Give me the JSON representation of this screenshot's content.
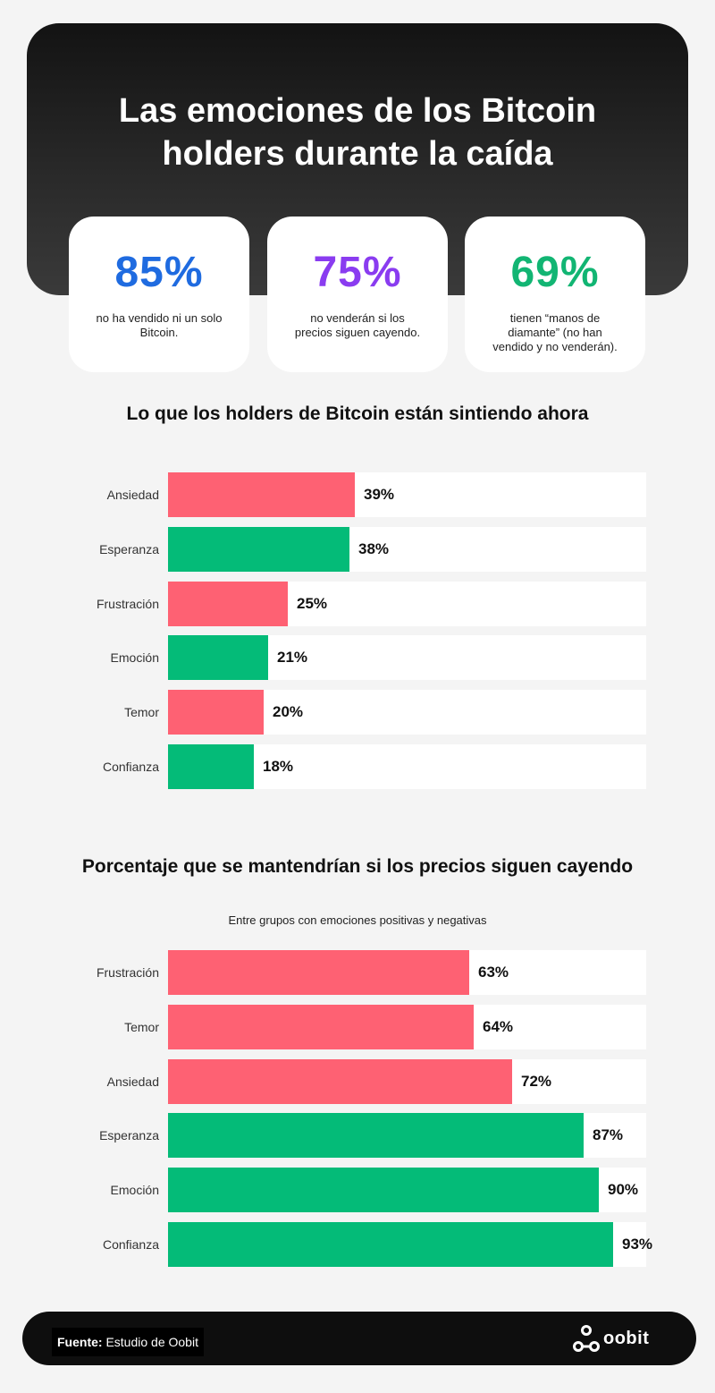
{
  "hero": {
    "title": "Las emociones de los Bitcoin\nholders durante la caída",
    "stats": [
      {
        "value": "85%",
        "desc": "no ha vendido ni un solo Bitcoin.",
        "color": "#1f6be0"
      },
      {
        "value": "75%",
        "desc": "no venderán si los precios siguen cayendo.",
        "color": "#8a3cf0"
      },
      {
        "value": "69%",
        "desc": "tienen “manos de diamante” (no han vendido y no venderán).",
        "color": "#12b573"
      }
    ]
  },
  "colors": {
    "negative": "#fe6173",
    "positive": "#04bb78"
  },
  "chart_data": [
    {
      "type": "bar",
      "orientation": "horizontal",
      "title": "Lo que los holders de Bitcoin están sintiendo ahora",
      "subtitle": "",
      "categories": [
        "Ansiedad",
        "Esperanza",
        "Frustración",
        "Emoción",
        "Temor",
        "Confianza"
      ],
      "values": [
        39,
        38,
        25,
        21,
        20,
        18
      ],
      "labels": [
        "39%",
        "38%",
        "25%",
        "21%",
        "20%",
        "18%"
      ],
      "sentiment": [
        "negative",
        "positive",
        "negative",
        "positive",
        "negative",
        "positive"
      ],
      "xlim": [
        0,
        100
      ],
      "grid": false
    },
    {
      "type": "bar",
      "orientation": "horizontal",
      "title": "Porcentaje que se mantendrían  si los precios siguen cayendo",
      "subtitle": "Entre grupos con emociones positivas y negativas",
      "categories": [
        "Frustración",
        "Temor",
        "Ansiedad",
        "Esperanza",
        "Emoción",
        "Confianza"
      ],
      "values": [
        63,
        64,
        72,
        87,
        90,
        93
      ],
      "labels": [
        "63%",
        "64%",
        "72%",
        "87%",
        "90%",
        "93%"
      ],
      "sentiment": [
        "negative",
        "negative",
        "negative",
        "positive",
        "positive",
        "positive"
      ],
      "xlim": [
        0,
        100
      ],
      "grid": false
    }
  ],
  "footer": {
    "source_label": "Fuente:",
    "source_text": " Estudio de Oobit",
    "logo_text": "oobit"
  }
}
